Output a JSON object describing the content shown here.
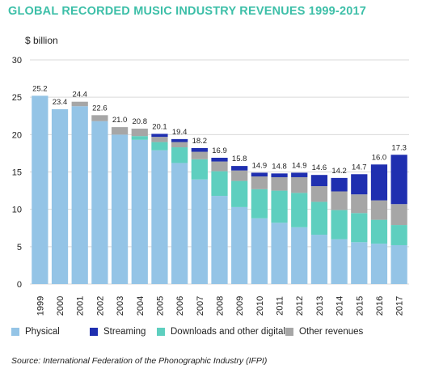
{
  "chart_data": {
    "type": "bar",
    "stacked": true,
    "title": "GLOBAL RECORDED MUSIC INDUSTRY REVENUES 1999-2017",
    "ylabel": "$ billion",
    "xlabel": "",
    "ylim": [
      0,
      30
    ],
    "yticks": [
      0,
      5,
      10,
      15,
      20,
      25,
      30
    ],
    "grid": true,
    "legend_position": "bottom",
    "categories": [
      "1999",
      "2000",
      "2001",
      "2002",
      "2003",
      "2004",
      "2005",
      "2006",
      "2007",
      "2008",
      "2009",
      "2010",
      "2011",
      "2012",
      "2013",
      "2014",
      "2015",
      "2016",
      "2017"
    ],
    "totals": [
      25.2,
      23.4,
      24.4,
      22.6,
      21.0,
      20.8,
      20.1,
      19.4,
      18.2,
      16.9,
      15.8,
      14.9,
      14.8,
      14.9,
      14.6,
      14.2,
      14.7,
      16.0,
      17.3
    ],
    "series": [
      {
        "name": "Physical",
        "color": "#94c4e6",
        "values": [
          25.2,
          23.4,
          23.8,
          21.8,
          20.0,
          19.3,
          17.9,
          16.2,
          14.0,
          11.8,
          10.3,
          8.8,
          8.2,
          7.6,
          6.6,
          6.0,
          5.6,
          5.4,
          5.2
        ]
      },
      {
        "name": "Streaming",
        "color": "#1f2fb0",
        "values": [
          0.0,
          0.0,
          0.0,
          0.0,
          0.0,
          0.0,
          0.4,
          0.4,
          0.5,
          0.5,
          0.6,
          0.5,
          0.5,
          0.6,
          1.5,
          1.8,
          2.7,
          4.8,
          6.6
        ]
      },
      {
        "name": "Downloads and other digital",
        "color": "#5ecfbf",
        "values": [
          0.0,
          0.0,
          0.0,
          0.0,
          0.0,
          0.5,
          1.1,
          2.1,
          2.7,
          3.3,
          3.5,
          3.9,
          4.3,
          4.6,
          4.4,
          3.9,
          3.9,
          3.2,
          2.7
        ]
      },
      {
        "name": "Other revenues",
        "color": "#a6a6a6",
        "values": [
          0.0,
          0.0,
          0.6,
          0.8,
          1.0,
          1.0,
          0.7,
          0.7,
          1.0,
          1.3,
          1.4,
          1.7,
          1.8,
          2.1,
          2.1,
          2.5,
          2.5,
          2.6,
          2.8
        ]
      }
    ],
    "stack_order": [
      "Physical",
      "Downloads and other digital",
      "Other revenues",
      "Streaming"
    ],
    "source": "Source: International Federation of the Phonographic Industry (IFPI)"
  }
}
